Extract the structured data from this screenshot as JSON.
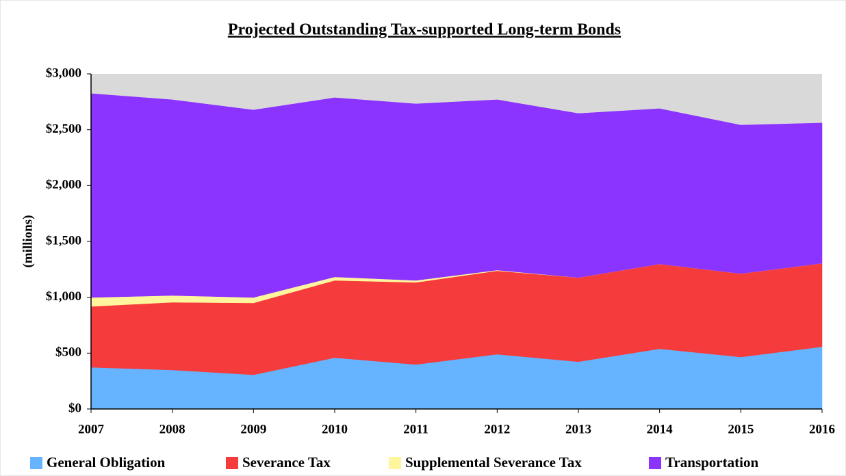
{
  "chart_data": {
    "type": "stacked_area",
    "title": "Projected Outstanding Tax-supported Long-term Bonds",
    "y_label": "(millions)",
    "categories": [
      "2007",
      "2008",
      "2009",
      "2010",
      "2011",
      "2012",
      "2013",
      "2014",
      "2015",
      "2016"
    ],
    "series": [
      {
        "name": "General Obligation",
        "color": "#66b3ff",
        "values": [
          373,
          349,
          306,
          459,
          398,
          490,
          423,
          539,
          465,
          557
        ]
      },
      {
        "name": "Severance Tax",
        "color": "#f53b3b",
        "values": [
          545,
          606,
          643,
          692,
          735,
          747,
          753,
          759,
          747,
          747
        ]
      },
      {
        "name": "Supplemental Severance Tax",
        "color": "#fff59d",
        "values": [
          80,
          61,
          49,
          31,
          18,
          6,
          0,
          0,
          0,
          0
        ]
      },
      {
        "name": "Transportation",
        "color": "#8b33ff",
        "values": [
          1825,
          1752,
          1678,
          1604,
          1580,
          1525,
          1469,
          1390,
          1329,
          1256
        ]
      }
    ],
    "ylim": [
      0,
      3000
    ],
    "yticks": [
      {
        "value": 0,
        "label": "$0"
      },
      {
        "value": 500,
        "label": "$500"
      },
      {
        "value": 1000,
        "label": "$1,000"
      },
      {
        "value": 1500,
        "label": "$1,500"
      },
      {
        "value": 2000,
        "label": "$2,000"
      },
      {
        "value": 2500,
        "label": "$2,500"
      },
      {
        "value": 3000,
        "label": "$3,000"
      }
    ],
    "plot_background": "#d9d9d9",
    "legend": "bottom"
  }
}
